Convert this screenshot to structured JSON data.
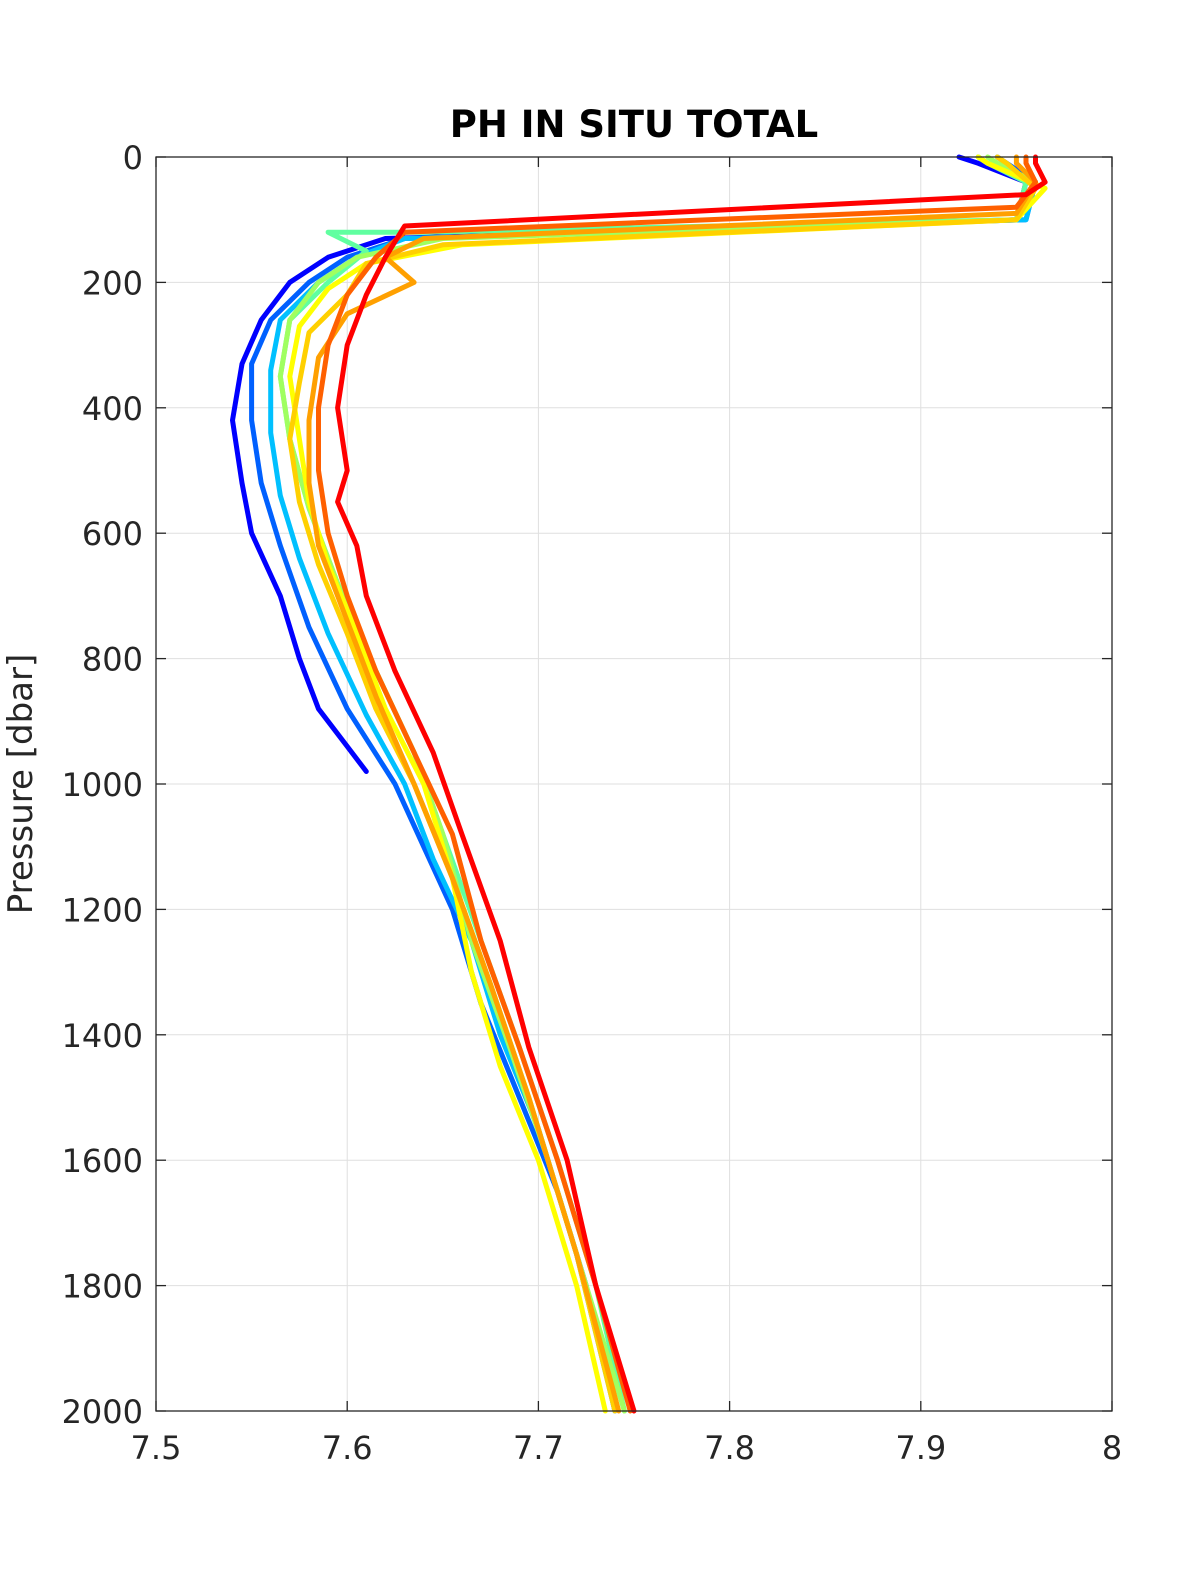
{
  "chart_data": {
    "type": "line",
    "title": "PH IN SITU TOTAL",
    "xlabel": "",
    "ylabel": "Pressure [dbar]",
    "xlim": [
      7.5,
      8
    ],
    "ylim": [
      0,
      2000
    ],
    "y_reversed": true,
    "grid": true,
    "xticks": [
      7.5,
      7.6,
      7.7,
      7.8,
      7.9,
      8
    ],
    "xtick_labels": [
      "7.5",
      "7.6",
      "7.7",
      "7.8",
      "7.9",
      "8"
    ],
    "yticks": [
      0,
      200,
      400,
      600,
      800,
      1000,
      1200,
      1400,
      1600,
      1800,
      2000
    ],
    "ytick_labels": [
      "0",
      "200",
      "400",
      "600",
      "800",
      "1000",
      "1200",
      "1400",
      "1600",
      "1800",
      "2000"
    ],
    "series": [
      {
        "color": "#0000ff",
        "x": [
          7.92,
          7.93,
          7.955,
          7.95,
          7.62,
          7.59,
          7.57,
          7.555,
          7.545,
          7.54,
          7.545,
          7.55,
          7.565,
          7.575,
          7.585,
          7.6,
          7.61
        ],
        "y": [
          0,
          10,
          40,
          100,
          130,
          160,
          200,
          260,
          330,
          420,
          520,
          600,
          700,
          800,
          880,
          940,
          980
        ]
      },
      {
        "color": "#0060ff",
        "x": [
          7.94,
          7.945,
          7.96,
          7.955,
          7.63,
          7.6,
          7.58,
          7.56,
          7.55,
          7.55,
          7.555,
          7.565,
          7.58,
          7.6,
          7.625,
          7.64,
          7.655,
          7.67,
          7.69,
          7.71,
          7.725,
          7.74
        ],
        "y": [
          0,
          10,
          40,
          100,
          130,
          160,
          200,
          260,
          330,
          420,
          520,
          620,
          750,
          880,
          1000,
          1100,
          1200,
          1350,
          1500,
          1650,
          1800,
          2000
        ]
      },
      {
        "color": "#00c0ff",
        "x": [
          7.93,
          7.935,
          7.96,
          7.955,
          7.63,
          7.605,
          7.585,
          7.565,
          7.56,
          7.56,
          7.565,
          7.575,
          7.59,
          7.61,
          7.63,
          7.645,
          7.665,
          7.68,
          7.7,
          7.72,
          7.74
        ],
        "y": [
          0,
          10,
          40,
          100,
          130,
          160,
          200,
          260,
          340,
          440,
          540,
          640,
          760,
          890,
          1000,
          1120,
          1250,
          1400,
          1550,
          1750,
          2000
        ]
      },
      {
        "color": "#60ffa0",
        "x": [
          7.93,
          7.935,
          7.955,
          7.95,
          7.64,
          7.59,
          7.61,
          7.59,
          7.57,
          7.565,
          7.57,
          7.58,
          7.595,
          7.615,
          7.635,
          7.65,
          7.67,
          7.69,
          7.71,
          7.73,
          7.745
        ],
        "y": [
          0,
          10,
          40,
          100,
          120,
          120,
          150,
          200,
          260,
          350,
          450,
          560,
          680,
          820,
          950,
          1080,
          1250,
          1420,
          1600,
          1800,
          2000
        ]
      },
      {
        "color": "#a0ff60",
        "x": [
          7.935,
          7.94,
          7.96,
          7.95,
          7.65,
          7.605,
          7.585,
          7.57,
          7.565,
          7.57,
          7.58,
          7.595,
          7.615,
          7.635,
          7.65,
          7.665,
          7.685,
          7.705,
          7.725,
          7.745
        ],
        "y": [
          0,
          10,
          40,
          100,
          130,
          160,
          200,
          260,
          350,
          450,
          560,
          680,
          820,
          950,
          1080,
          1250,
          1420,
          1600,
          1800,
          2000
        ]
      },
      {
        "color": "#ffff00",
        "x": [
          7.93,
          7.935,
          7.965,
          7.95,
          7.66,
          7.61,
          7.59,
          7.575,
          7.57,
          7.575,
          7.58,
          7.59,
          7.605,
          7.62,
          7.64,
          7.655,
          7.665,
          7.68,
          7.7,
          7.72,
          7.735
        ],
        "y": [
          0,
          10,
          50,
          100,
          140,
          170,
          210,
          270,
          350,
          450,
          550,
          650,
          760,
          880,
          1000,
          1150,
          1300,
          1450,
          1600,
          1800,
          2000
        ]
      },
      {
        "color": "#ffd000",
        "x": [
          7.94,
          7.945,
          7.96,
          7.95,
          7.65,
          7.61,
          7.6,
          7.58,
          7.575,
          7.57,
          7.575,
          7.585,
          7.6,
          7.615,
          7.635,
          7.655,
          7.675,
          7.695,
          7.72,
          7.74
        ],
        "y": [
          0,
          10,
          50,
          100,
          140,
          170,
          220,
          280,
          360,
          450,
          550,
          650,
          760,
          880,
          1000,
          1150,
          1320,
          1500,
          1750,
          2000
        ]
      },
      {
        "color": "#ffa000",
        "x": [
          7.95,
          7.95,
          7.96,
          7.95,
          7.64,
          7.62,
          7.635,
          7.6,
          7.585,
          7.58,
          7.58,
          7.585,
          7.6,
          7.615,
          7.635,
          7.655,
          7.675,
          7.695,
          7.72,
          7.742
        ],
        "y": [
          0,
          10,
          40,
          90,
          130,
          160,
          200,
          250,
          320,
          420,
          520,
          620,
          740,
          860,
          1000,
          1150,
          1320,
          1500,
          1750,
          2000
        ]
      },
      {
        "color": "#ff6000",
        "x": [
          7.955,
          7.955,
          7.96,
          7.95,
          7.63,
          7.615,
          7.6,
          7.59,
          7.585,
          7.585,
          7.59,
          7.6,
          7.615,
          7.635,
          7.655,
          7.67,
          7.69,
          7.71,
          7.73,
          7.748
        ],
        "y": [
          0,
          10,
          40,
          80,
          120,
          160,
          220,
          300,
          400,
          500,
          600,
          700,
          820,
          950,
          1080,
          1250,
          1420,
          1600,
          1800,
          2000
        ]
      },
      {
        "color": "#ff0000",
        "x": [
          7.96,
          7.96,
          7.965,
          7.955,
          7.63,
          7.62,
          7.61,
          7.6,
          7.595,
          7.6,
          7.595,
          7.605,
          7.61,
          7.625,
          7.645,
          7.66,
          7.68,
          7.695,
          7.715,
          7.73,
          7.75
        ],
        "y": [
          0,
          10,
          40,
          60,
          110,
          160,
          220,
          300,
          400,
          500,
          550,
          620,
          700,
          820,
          950,
          1080,
          1250,
          1420,
          1600,
          1800,
          2000
        ]
      }
    ]
  }
}
